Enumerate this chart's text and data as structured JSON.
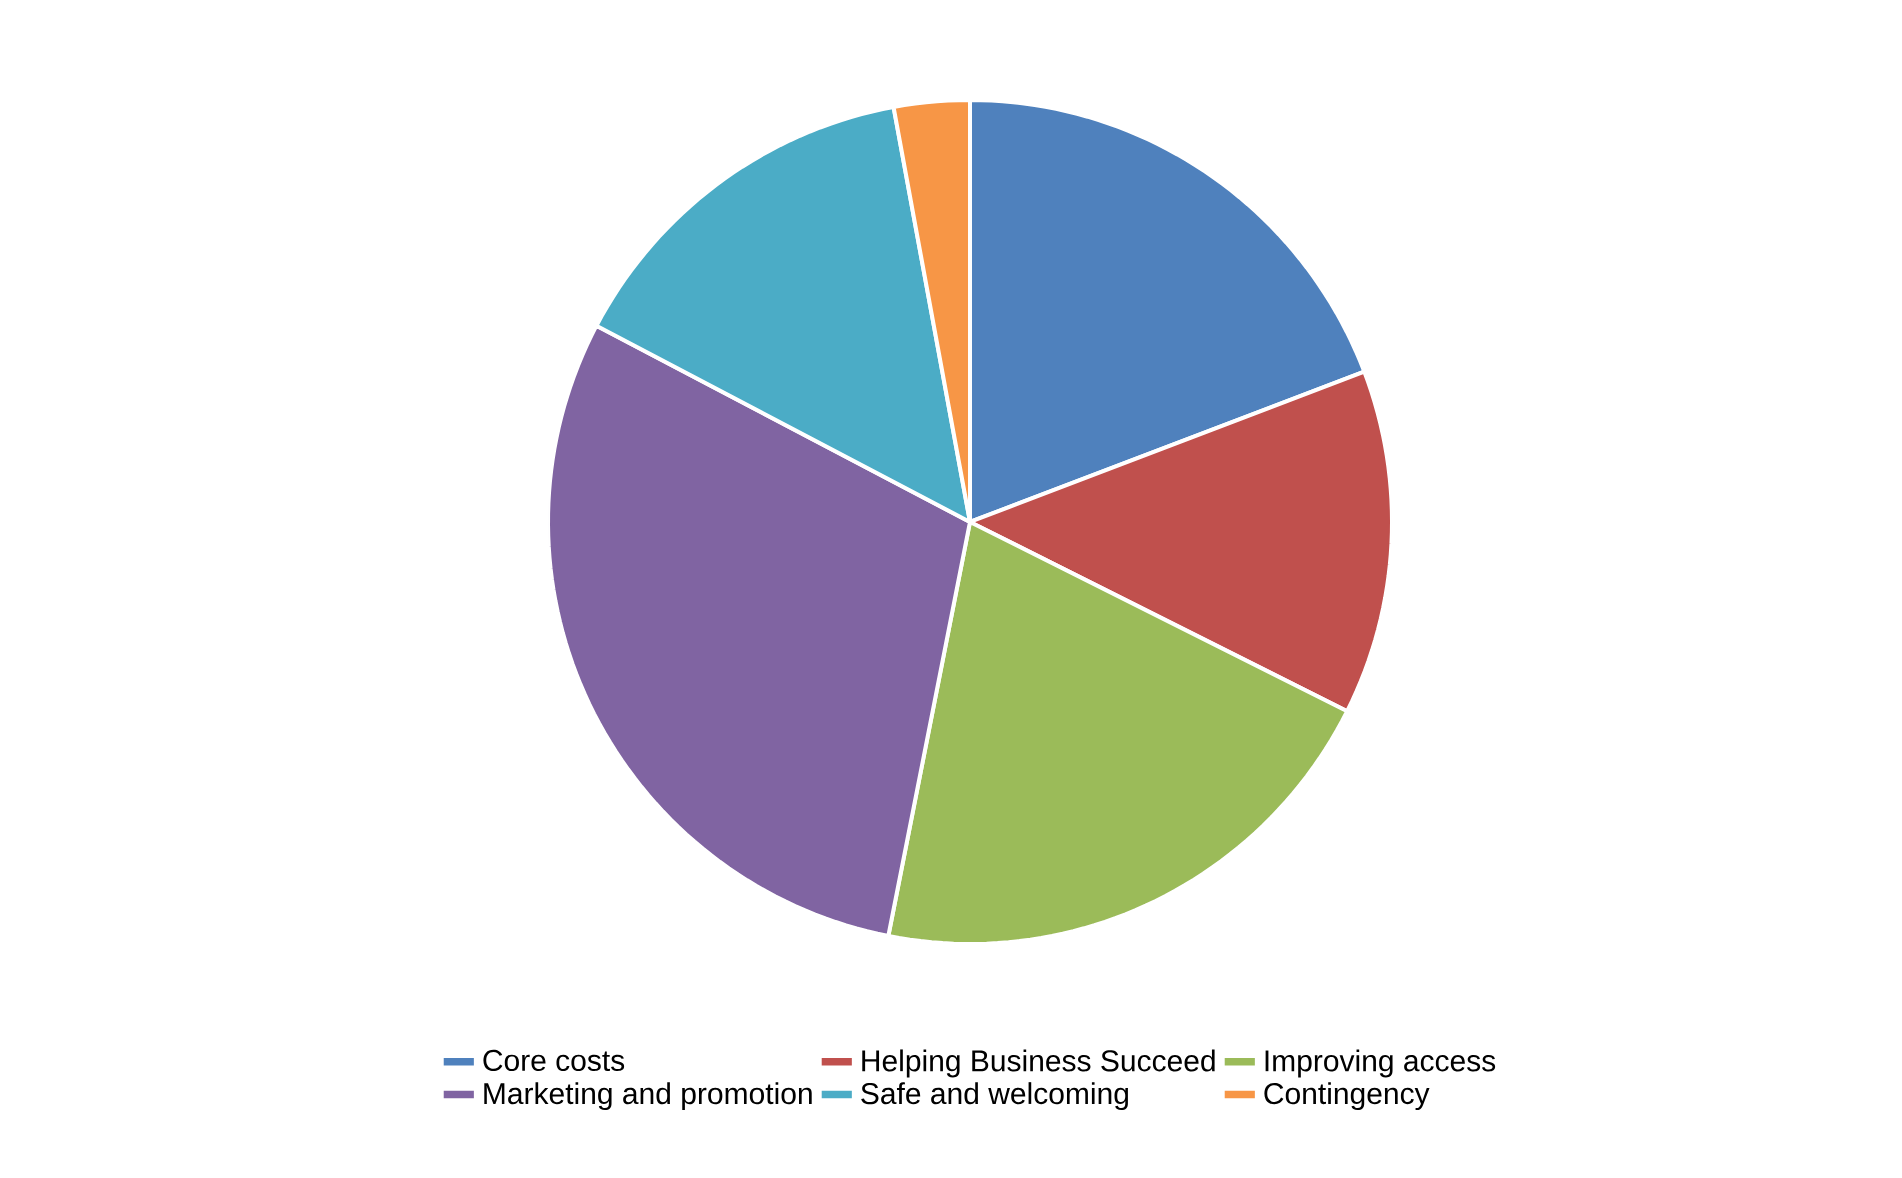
{
  "chart_data": {
    "type": "pie",
    "categories": [
      "Core costs",
      "Helping Business Succeed",
      "Improving access",
      "Marketing and promotion",
      "Safe and welcoming",
      "Contingency"
    ],
    "values": [
      19.2,
      13.2,
      20.7,
      29.6,
      14.4,
      2.9
    ],
    "colors": [
      "#4f81bd",
      "#c0504d",
      "#9bbb59",
      "#8064a2",
      "#4bacc6",
      "#f79646"
    ],
    "legend": "bottom"
  }
}
